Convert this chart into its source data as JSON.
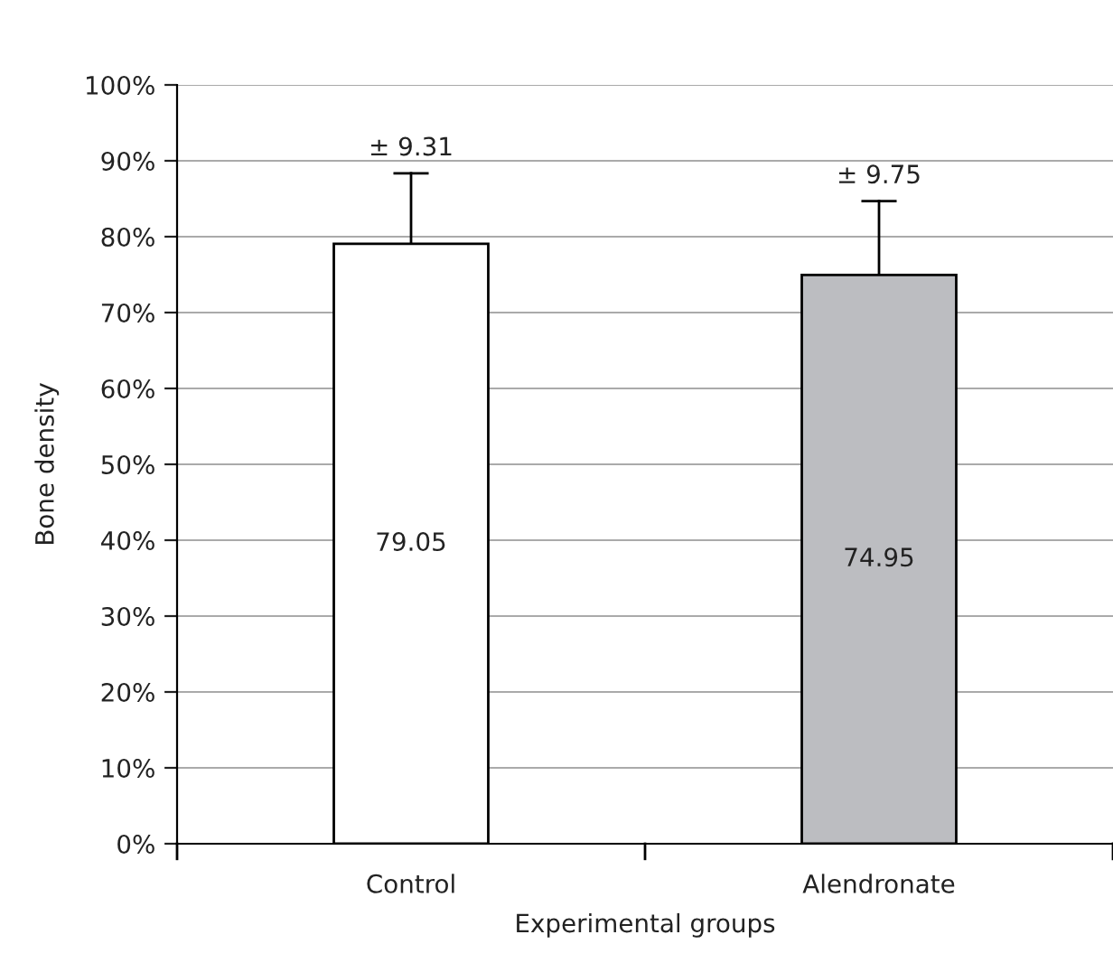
{
  "chart_data": {
    "type": "bar",
    "xlabel": "Experimental groups",
    "ylabel": "Bone density",
    "categories": [
      "Control",
      "Alendronate"
    ],
    "values": [
      79.05,
      74.95
    ],
    "colors": [
      "#ffffff",
      "#bcbdc1"
    ],
    "errors": [
      [
        79.05,
        88.36
      ],
      [
        74.95,
        84.7
      ]
    ],
    "value_labels": [
      "79.05",
      "74.95"
    ],
    "annotations": [
      {
        "text": "± 9.31",
        "x": "Control",
        "y": 88.36
      },
      {
        "text": "± 9.75",
        "x": "Alendronate",
        "y": 84.7
      }
    ],
    "ylim": [
      0,
      100
    ],
    "yticks": [
      {
        "value": 0,
        "label": "0%"
      },
      {
        "value": 10,
        "label": "10%"
      },
      {
        "value": 20,
        "label": "20%"
      },
      {
        "value": 30,
        "label": "30%"
      },
      {
        "value": 40,
        "label": "40%"
      },
      {
        "value": 50,
        "label": "50%"
      },
      {
        "value": 60,
        "label": "60%"
      },
      {
        "value": 70,
        "label": "70%"
      },
      {
        "value": 80,
        "label": "80%"
      },
      {
        "value": 90,
        "label": "90%"
      },
      {
        "value": 100,
        "label": "100%"
      }
    ],
    "grid": "y"
  }
}
